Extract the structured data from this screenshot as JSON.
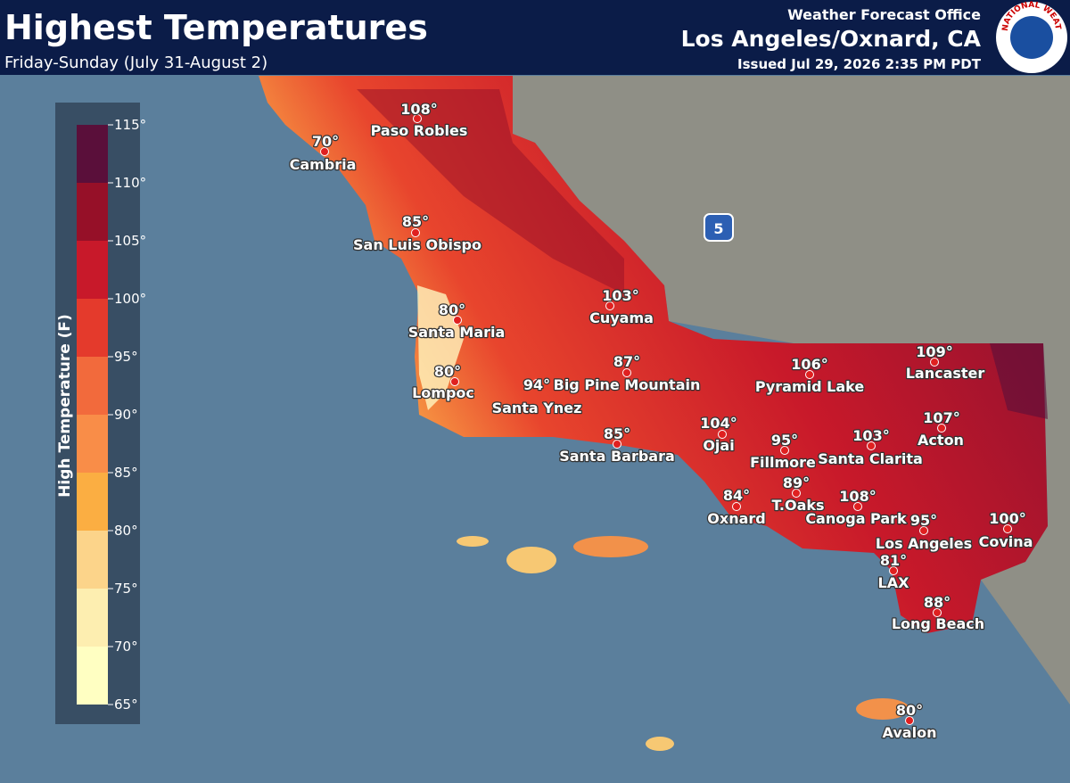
{
  "header": {
    "title": "Highest Temperatures",
    "subtitle": "Friday-Sunday (July 31-August 2)",
    "office_label": "Weather Forecast Office",
    "office": "Los Angeles/Oxnard, CA",
    "issued": "Issued Jul 29, 2026 2:35 PM PDT",
    "logo_text": "NATIONAL WEATHER SERVICE"
  },
  "legend": {
    "title": "High Temperature (F)",
    "labels": [
      "115°",
      "110°",
      "105°",
      "100°",
      "95°",
      "90°",
      "85°",
      "80°",
      "75°",
      "70°",
      "65°"
    ]
  },
  "highway": "5",
  "cities": [
    {
      "name": "Cambria",
      "temp": "70°"
    },
    {
      "name": "Paso Robles",
      "temp": "108°"
    },
    {
      "name": "San Luis Obispo",
      "temp": "85°"
    },
    {
      "name": "Santa Maria",
      "temp": "80°"
    },
    {
      "name": "Lompoc",
      "temp": "80°"
    },
    {
      "name": "Cuyama",
      "temp": "103°"
    },
    {
      "name": "Santa Ynez",
      "temp": "94°"
    },
    {
      "name": "Big Pine Mountain",
      "temp": "87°"
    },
    {
      "name": "Santa Barbara",
      "temp": "85°"
    },
    {
      "name": "Ojai",
      "temp": "104°"
    },
    {
      "name": "Fillmore",
      "temp": "95°"
    },
    {
      "name": "Santa Clarita",
      "temp": "103°"
    },
    {
      "name": "Pyramid Lake",
      "temp": "106°"
    },
    {
      "name": "Lancaster",
      "temp": "109°"
    },
    {
      "name": "Acton",
      "temp": "107°"
    },
    {
      "name": "Oxnard",
      "temp": "84°"
    },
    {
      "name": "T.Oaks",
      "temp": "89°"
    },
    {
      "name": "Canoga Park",
      "temp": "108°"
    },
    {
      "name": "Los Angeles",
      "temp": "95°"
    },
    {
      "name": "Covina",
      "temp": "100°"
    },
    {
      "name": "LAX",
      "temp": "81°"
    },
    {
      "name": "Long Beach",
      "temp": "88°"
    },
    {
      "name": "Avalon",
      "temp": "80°"
    }
  ]
}
